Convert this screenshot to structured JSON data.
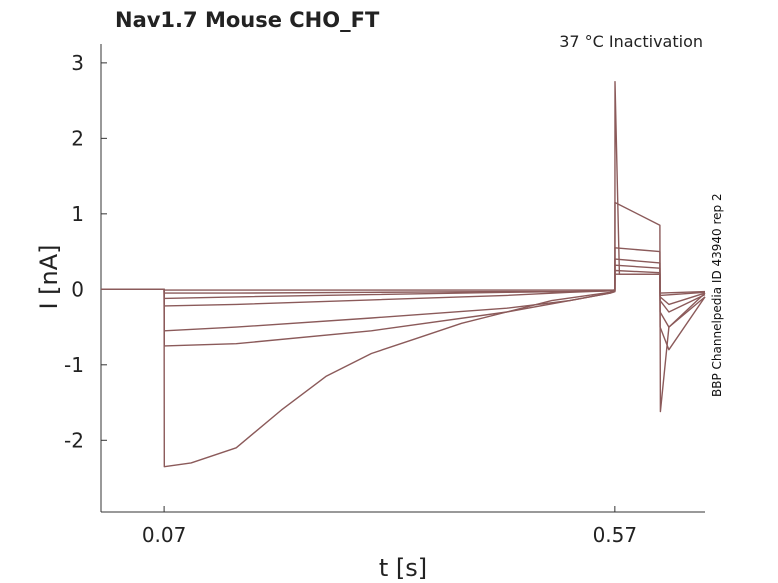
{
  "chart_data": {
    "type": "line",
    "title": "Nav1.7  Mouse  CHO_FT",
    "annotation": "37 °C  Inactivation",
    "side_label": "BBP Channelpedia ID 43940 rep 2",
    "xlabel": "t [s]",
    "ylabel": "I [nA]",
    "xlim": [
      0.0,
      0.67
    ],
    "ylim": [
      -2.95,
      3.25
    ],
    "x_ticks": [
      0.07,
      0.57
    ],
    "x_tick_labels": [
      "0.07",
      "0.57"
    ],
    "y_ticks": [
      -2,
      -1,
      0,
      1,
      2,
      3
    ],
    "y_tick_labels": [
      "-2",
      "-1",
      "0",
      "1",
      "2",
      "3"
    ],
    "grid": false,
    "line_color": "#8b5a5a",
    "series": [
      {
        "x": [
          0.0,
          0.07,
          0.0702,
          0.15,
          0.3,
          0.45,
          0.52,
          0.565,
          0.57,
          0.5702,
          0.62,
          0.6202,
          0.67
        ],
        "y": [
          0.0,
          0.0,
          -0.01,
          -0.01,
          -0.01,
          -0.01,
          -0.01,
          -0.01,
          -0.01,
          0.2,
          0.2,
          -0.05,
          -0.03
        ]
      },
      {
        "x": [
          0.0,
          0.07,
          0.0702,
          0.15,
          0.3,
          0.45,
          0.52,
          0.565,
          0.57,
          0.5702,
          0.62,
          0.6202,
          0.67
        ],
        "y": [
          0.0,
          0.0,
          -0.05,
          -0.05,
          -0.04,
          -0.03,
          -0.03,
          -0.02,
          -0.02,
          0.25,
          0.22,
          -0.08,
          -0.04
        ]
      },
      {
        "x": [
          0.0,
          0.07,
          0.0702,
          0.15,
          0.3,
          0.45,
          0.52,
          0.565,
          0.57,
          0.5702,
          0.62,
          0.6202,
          0.63,
          0.67
        ],
        "y": [
          0.0,
          0.0,
          -0.12,
          -0.1,
          -0.07,
          -0.04,
          -0.03,
          -0.02,
          -0.02,
          0.32,
          0.28,
          -0.1,
          -0.2,
          -0.05
        ]
      },
      {
        "x": [
          0.0,
          0.07,
          0.0702,
          0.15,
          0.3,
          0.45,
          0.52,
          0.565,
          0.57,
          0.5702,
          0.62,
          0.6202,
          0.63,
          0.67
        ],
        "y": [
          0.0,
          0.0,
          -0.22,
          -0.2,
          -0.14,
          -0.08,
          -0.04,
          -0.02,
          -0.02,
          0.4,
          0.35,
          -0.15,
          -0.3,
          -0.07
        ]
      },
      {
        "x": [
          0.0,
          0.07,
          0.0702,
          0.15,
          0.3,
          0.45,
          0.52,
          0.565,
          0.57,
          0.5702,
          0.62,
          0.6202,
          0.63,
          0.67
        ],
        "y": [
          0.0,
          0.0,
          -0.55,
          -0.5,
          -0.38,
          -0.25,
          -0.15,
          -0.05,
          -0.03,
          0.55,
          0.5,
          -0.3,
          -0.5,
          -0.1
        ]
      },
      {
        "x": [
          0.0,
          0.07,
          0.0702,
          0.15,
          0.3,
          0.45,
          0.52,
          0.565,
          0.57,
          0.5702,
          0.62,
          0.6202,
          0.63,
          0.67
        ],
        "y": [
          0.0,
          0.0,
          -0.75,
          -0.72,
          -0.55,
          -0.3,
          -0.15,
          -0.05,
          -0.03,
          1.15,
          0.85,
          -0.5,
          -0.8,
          -0.1
        ]
      },
      {
        "x": [
          0.0,
          0.07,
          0.0702,
          0.1,
          0.15,
          0.2,
          0.25,
          0.3,
          0.35,
          0.4,
          0.45,
          0.5,
          0.54,
          0.565,
          0.57,
          0.5702,
          0.575,
          0.62,
          0.6202,
          0.6205,
          0.63,
          0.67
        ],
        "y": [
          0.0,
          0.0,
          -2.35,
          -2.3,
          -2.1,
          -1.6,
          -1.15,
          -0.85,
          -0.65,
          -0.45,
          -0.3,
          -0.15,
          -0.08,
          -0.04,
          0.0,
          2.75,
          0.2,
          0.2,
          -0.3,
          -1.62,
          -0.5,
          -0.05
        ]
      }
    ]
  }
}
